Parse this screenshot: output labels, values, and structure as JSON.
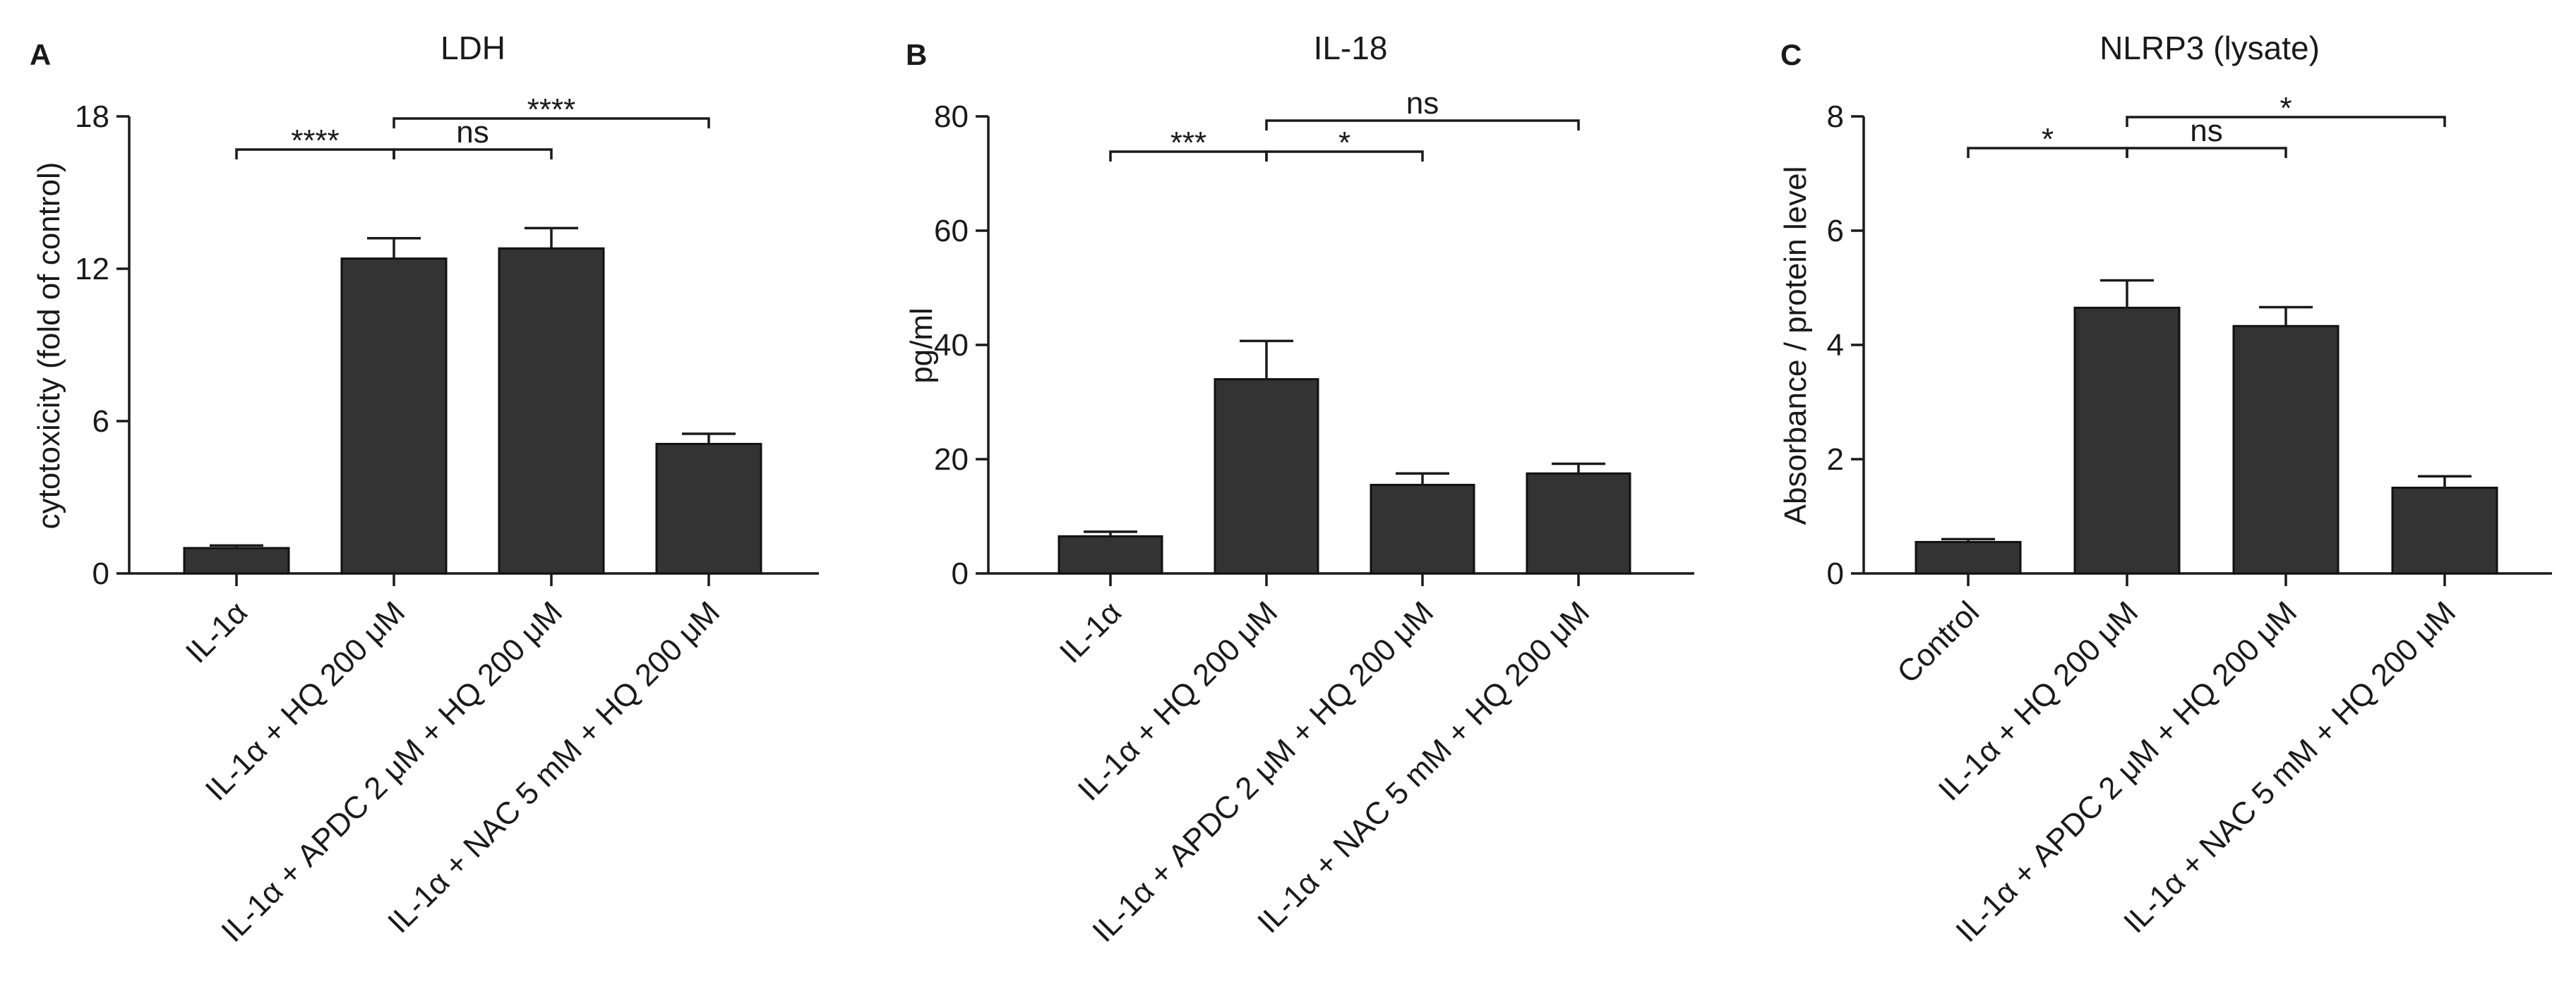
{
  "chart_data": [
    {
      "type": "bar",
      "panel": "A",
      "title": "LDH",
      "ylabel": "cytotoxicity (fold of control)",
      "xlabel": "",
      "ylim": [
        0,
        18
      ],
      "yticks": [
        "0",
        "6",
        "12",
        "18"
      ],
      "categories": [
        "IL-1α",
        "IL-1α + HQ 200 μM",
        "IL-1α + APDC 2 μM + HQ 200 μM",
        "IL-1α + NAC 5 mM + HQ 200 μM"
      ],
      "values": [
        1.0,
        12.4,
        12.8,
        5.1
      ],
      "errors": [
        0.1,
        0.8,
        0.8,
        0.4
      ],
      "significance": [
        {
          "from": 0,
          "to": 1,
          "label": "****",
          "level": 0
        },
        {
          "from": 1,
          "to": 2,
          "label": "ns",
          "level": 0
        },
        {
          "from": 1,
          "to": 3,
          "label": "****",
          "level": 1
        }
      ]
    },
    {
      "type": "bar",
      "panel": "B",
      "title": "IL-18",
      "ylabel": "pg/ml",
      "xlabel": "",
      "ylim": [
        0,
        80
      ],
      "yticks": [
        "0",
        "20",
        "40",
        "60",
        "80"
      ],
      "categories": [
        "IL-1α",
        "IL-1α + HQ 200 μM",
        "IL-1α + APDC 2 μM + HQ 200 μM",
        "IL-1α + NAC 5 mM + HQ 200 μM"
      ],
      "values": [
        6.5,
        34.0,
        15.5,
        17.5
      ],
      "errors": [
        0.8,
        6.7,
        2.0,
        1.7
      ],
      "significance": [
        {
          "from": 0,
          "to": 1,
          "label": "***",
          "level": 0
        },
        {
          "from": 1,
          "to": 2,
          "label": "*",
          "level": 0
        },
        {
          "from": 1,
          "to": 3,
          "label": "ns",
          "level": 1
        }
      ]
    },
    {
      "type": "bar",
      "panel": "C",
      "title": "NLRP3 (lysate)",
      "ylabel": "Absorbance / protein level",
      "xlabel": "",
      "ylim": [
        0,
        8
      ],
      "yticks": [
        "0",
        "2",
        "4",
        "6",
        "8"
      ],
      "categories": [
        "Control",
        "IL-1α + HQ 200 μM",
        "IL-1α + APDC 2 μM + HQ 200 μM",
        "IL-1α + NAC 5 mM + HQ 200 μM"
      ],
      "values": [
        0.55,
        4.65,
        4.33,
        1.5
      ],
      "errors": [
        0.05,
        0.48,
        0.33,
        0.2
      ],
      "significance": [
        {
          "from": 0,
          "to": 1,
          "label": "*",
          "level": 0
        },
        {
          "from": 1,
          "to": 2,
          "label": "ns",
          "level": 0
        },
        {
          "from": 1,
          "to": 3,
          "label": "*",
          "level": 1
        }
      ]
    }
  ]
}
